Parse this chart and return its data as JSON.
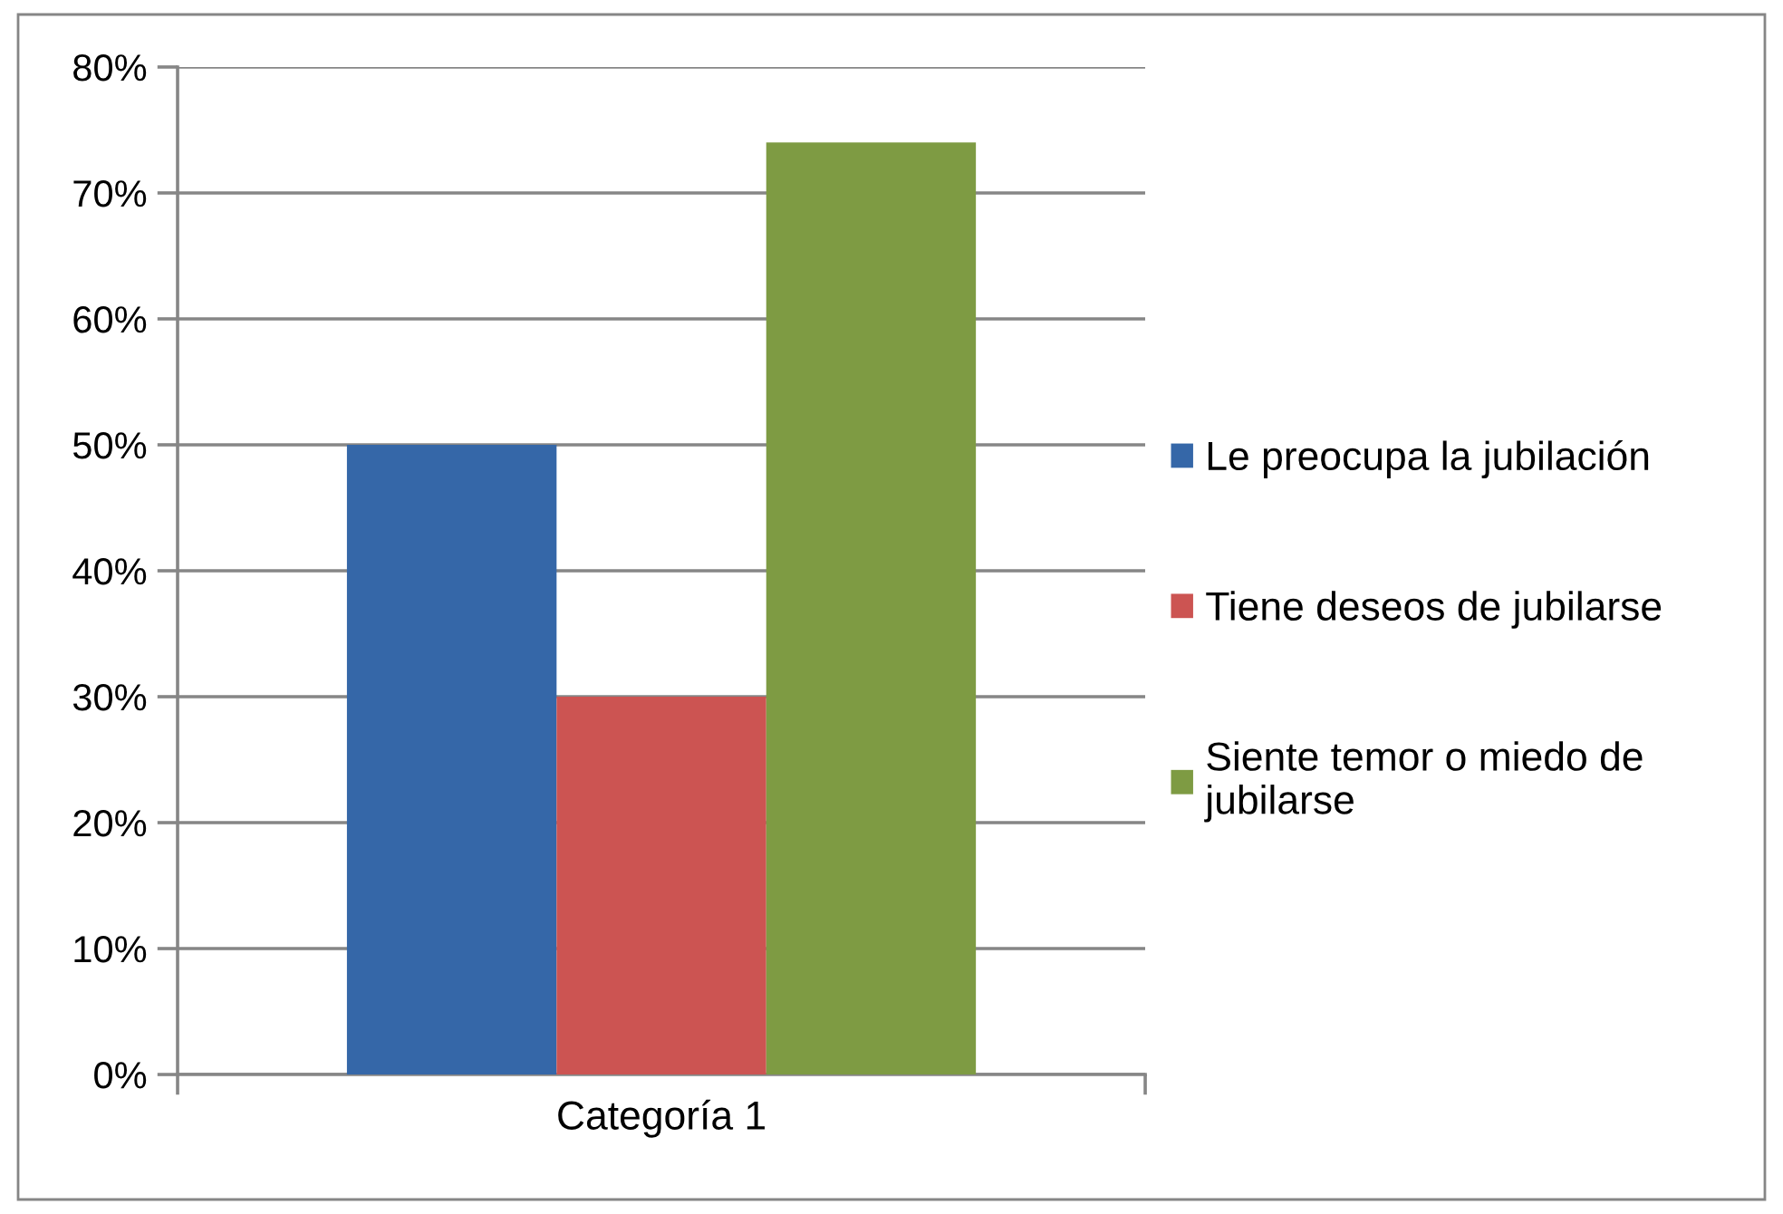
{
  "chart_data": {
    "type": "bar",
    "categories": [
      "Categoría 1"
    ],
    "series": [
      {
        "name": "Le preocupa la jubilación",
        "color": "#3567a8",
        "values": [
          50
        ]
      },
      {
        "name": "Tiene deseos de jubilarse",
        "color": "#cc5452",
        "values": [
          30
        ]
      },
      {
        "name": "Siente temor o miedo de jubilarse",
        "color": "#7e9b43",
        "values": [
          74
        ]
      }
    ],
    "ylim": [
      0,
      80
    ],
    "yticks": [
      {
        "value": 0,
        "label": "0%"
      },
      {
        "value": 10,
        "label": "10%"
      },
      {
        "value": 20,
        "label": "20%"
      },
      {
        "value": 30,
        "label": "30%"
      },
      {
        "value": 40,
        "label": "40%"
      },
      {
        "value": 50,
        "label": "50%"
      },
      {
        "value": 60,
        "label": "60%"
      },
      {
        "value": 70,
        "label": "70%"
      },
      {
        "value": 80,
        "label": "80%"
      }
    ],
    "grid": "y",
    "legend": "right"
  }
}
